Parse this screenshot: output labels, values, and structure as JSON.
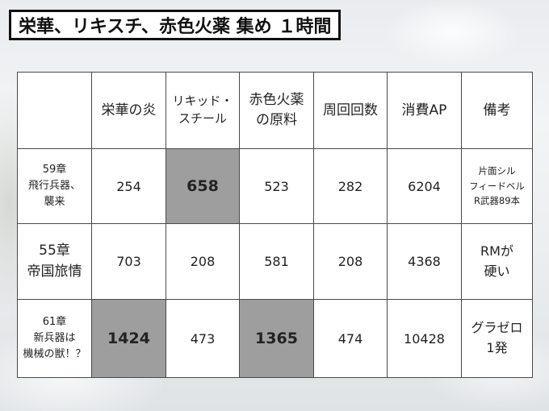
{
  "title": "栄華、リキスチ、赤色火薬 集め １時間",
  "table": {
    "headers": {
      "c1": "栄華の炎",
      "c2_line1": "リキッド・",
      "c2_line2": "スチール",
      "c3_line1": "赤色火薬",
      "c3_line2": "の原料",
      "c4": "周回回数",
      "c5": "消費AP",
      "c6": "備考"
    },
    "rows": [
      {
        "chapter": "59章",
        "name_line1": "飛行兵器、",
        "name_line2": "襲来",
        "eika": "254",
        "liquid": "658",
        "kayaku": "523",
        "laps": "282",
        "ap": "6204",
        "note_line1": "片面シル",
        "note_line2": "フィードベル",
        "note_line3": "R武器89本"
      },
      {
        "chapter": "55章",
        "name_line1": "帝国旅情",
        "eika": "703",
        "liquid": "208",
        "kayaku": "581",
        "laps": "208",
        "ap": "4368",
        "note_line1": "RMが",
        "note_line2": "硬い"
      },
      {
        "chapter": "61章",
        "name_line1": "新兵器は",
        "name_line2": "機械の獣！？",
        "eika": "1424",
        "liquid": "473",
        "kayaku": "1365",
        "laps": "474",
        "ap": "10428",
        "note_line1": "グラゼロ",
        "note_line2": "1発"
      }
    ]
  },
  "colors": {
    "highlight": "#9e9e9e",
    "border": "#4a4a4a"
  }
}
